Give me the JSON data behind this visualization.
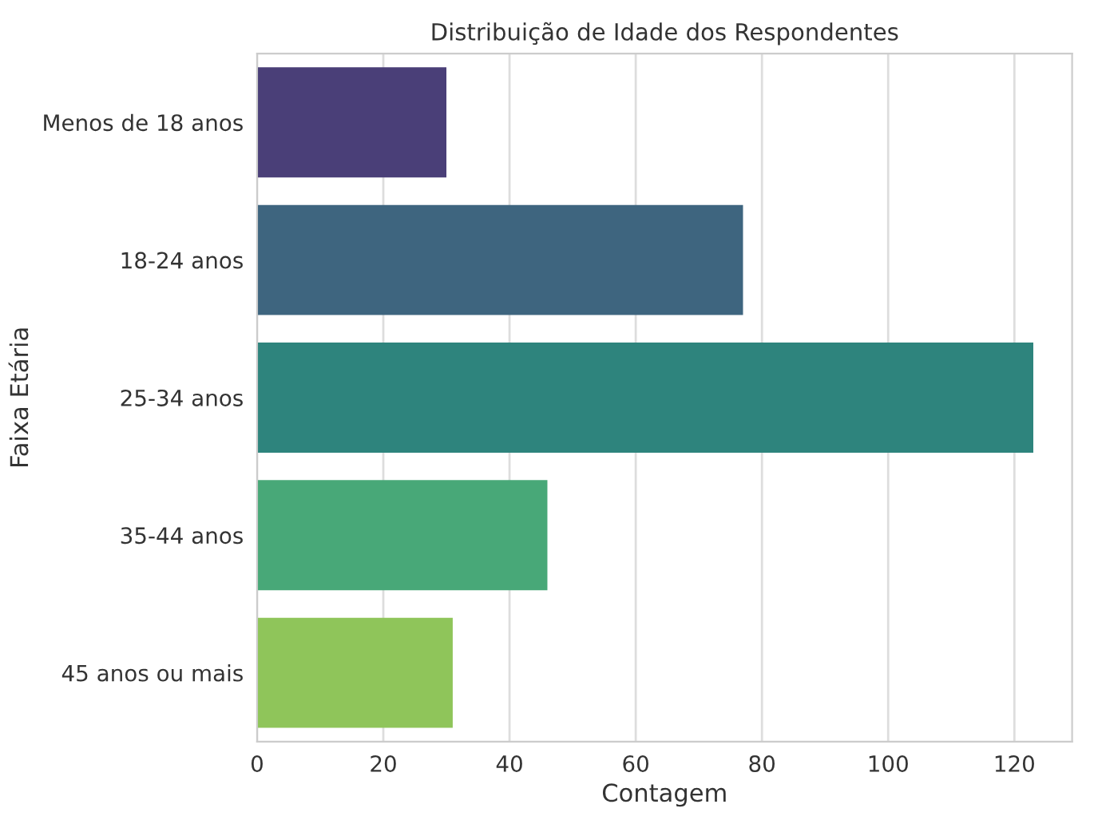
{
  "chart_data": {
    "type": "bar",
    "orientation": "horizontal",
    "title": "Distribuição de Idade dos Respondentes",
    "xlabel": "Contagem",
    "ylabel": "Faixa Etária",
    "categories": [
      "Menos de 18 anos",
      "18-24 anos",
      "25-34 anos",
      "35-44 anos",
      "45 anos ou mais"
    ],
    "values": [
      30,
      77,
      123,
      46,
      31
    ],
    "colors": [
      "#4a3f78",
      "#3e657f",
      "#2e847d",
      "#48a878",
      "#8fc55a"
    ],
    "xlim": [
      0,
      129.15
    ],
    "xticks": [
      0,
      20,
      40,
      60,
      80,
      100,
      120
    ],
    "grid": "x"
  }
}
